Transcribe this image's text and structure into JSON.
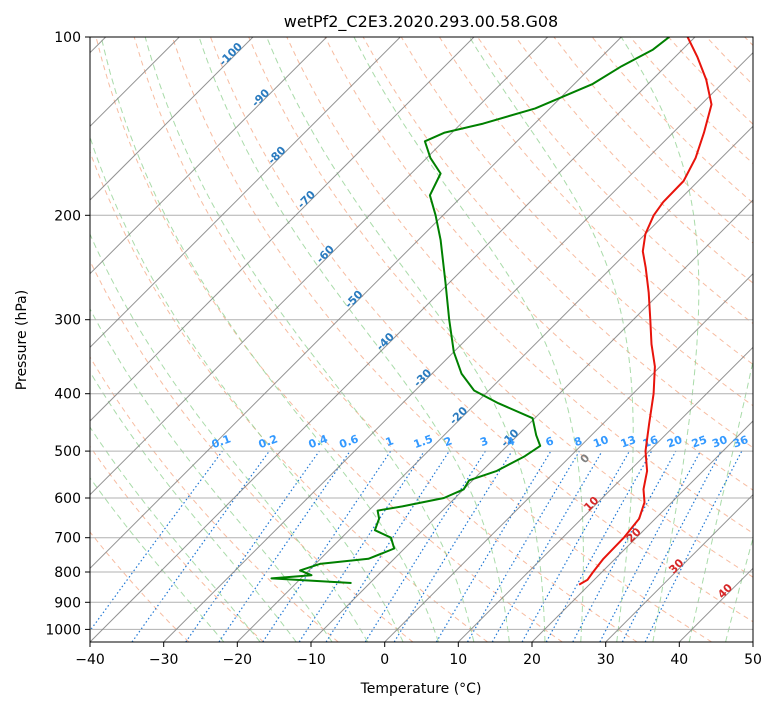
{
  "chart_data": {
    "type": "line",
    "subtype": "skew-T log-p diagram",
    "title": "wetPf2_C2E3.2020.293.00.58.G08",
    "xlabel": "Temperature (°C)",
    "ylabel": "Pressure (hPa)",
    "xlim": [
      -40,
      50
    ],
    "ylim": [
      1050,
      100
    ],
    "y_scale": "log",
    "x_ticks": [
      -40,
      -30,
      -20,
      -10,
      0,
      10,
      20,
      30,
      40,
      50
    ],
    "x_tick_labels": [
      "−40",
      "−30",
      "−20",
      "−10",
      "0",
      "10",
      "20",
      "30",
      "40",
      "50"
    ],
    "y_ticks": [
      100,
      200,
      300,
      400,
      500,
      600,
      700,
      800,
      900,
      1000
    ],
    "y_tick_labels": [
      "100",
      "200",
      "300",
      "400",
      "500",
      "600",
      "700",
      "800",
      "900",
      "1000"
    ],
    "grid": true,
    "series": [
      {
        "color": "#e8140c",
        "points": [
          {
            "p": 840,
            "t": 18.6
          },
          {
            "p": 825,
            "t": 19.1
          },
          {
            "p": 800,
            "t": 18.8
          },
          {
            "p": 760,
            "t": 18.4
          },
          {
            "p": 700,
            "t": 18.3
          },
          {
            "p": 650,
            "t": 17.8
          },
          {
            "p": 610,
            "t": 16.3
          },
          {
            "p": 580,
            "t": 14.4
          },
          {
            "p": 540,
            "t": 12.4
          },
          {
            "p": 500,
            "t": 9.5
          },
          {
            "p": 450,
            "t": 6.3
          },
          {
            "p": 400,
            "t": 2.8
          },
          {
            "p": 360,
            "t": -0.7
          },
          {
            "p": 330,
            "t": -4.2
          },
          {
            "p": 300,
            "t": -7.7
          },
          {
            "p": 270,
            "t": -11.6
          },
          {
            "p": 245,
            "t": -15.4
          },
          {
            "p": 230,
            "t": -18.0
          },
          {
            "p": 215,
            "t": -20.0
          },
          {
            "p": 200,
            "t": -21.4
          },
          {
            "p": 190,
            "t": -21.9
          },
          {
            "p": 175,
            "t": -22.0
          },
          {
            "p": 160,
            "t": -23.5
          },
          {
            "p": 145,
            "t": -25.8
          },
          {
            "p": 130,
            "t": -28.6
          },
          {
            "p": 118,
            "t": -32.7
          },
          {
            "p": 108,
            "t": -37.0
          },
          {
            "p": 100,
            "t": -41.0
          }
        ]
      },
      {
        "color": "#008000",
        "points": [
          {
            "p": 835,
            "t": -12.5
          },
          {
            "p": 820,
            "t": -24.0
          },
          {
            "p": 810,
            "t": -19.0
          },
          {
            "p": 795,
            "t": -21.2
          },
          {
            "p": 775,
            "t": -19.4
          },
          {
            "p": 760,
            "t": -13.5
          },
          {
            "p": 730,
            "t": -11.4
          },
          {
            "p": 700,
            "t": -13.3
          },
          {
            "p": 680,
            "t": -16.5
          },
          {
            "p": 650,
            "t": -17.5
          },
          {
            "p": 630,
            "t": -18.8
          },
          {
            "p": 620,
            "t": -16.0
          },
          {
            "p": 600,
            "t": -11.5
          },
          {
            "p": 580,
            "t": -10.0
          },
          {
            "p": 560,
            "t": -10.5
          },
          {
            "p": 540,
            "t": -8.0
          },
          {
            "p": 510,
            "t": -6.2
          },
          {
            "p": 490,
            "t": -5.5
          },
          {
            "p": 470,
            "t": -7.5
          },
          {
            "p": 440,
            "t": -10.3
          },
          {
            "p": 415,
            "t": -17.0
          },
          {
            "p": 395,
            "t": -22.0
          },
          {
            "p": 370,
            "t": -26.0
          },
          {
            "p": 340,
            "t": -30.0
          },
          {
            "p": 300,
            "t": -35.0
          },
          {
            "p": 260,
            "t": -40.5
          },
          {
            "p": 220,
            "t": -47.0
          },
          {
            "p": 200,
            "t": -51.0
          },
          {
            "p": 185,
            "t": -54.5
          },
          {
            "p": 170,
            "t": -56.0
          },
          {
            "p": 160,
            "t": -59.5
          },
          {
            "p": 150,
            "t": -62.5
          },
          {
            "p": 145,
            "t": -61.0
          },
          {
            "p": 140,
            "t": -57.0
          },
          {
            "p": 132,
            "t": -52.0
          },
          {
            "p": 120,
            "t": -47.5
          },
          {
            "p": 112,
            "t": -46.0
          },
          {
            "p": 105,
            "t": -44.0
          },
          {
            "p": 100,
            "t": -43.5
          }
        ]
      }
    ],
    "isotherm_labels": [
      {
        "t": -100,
        "text": "-100"
      },
      {
        "t": -90,
        "text": "-90"
      },
      {
        "t": -80,
        "text": "-80"
      },
      {
        "t": -70,
        "text": "-70"
      },
      {
        "t": -60,
        "text": "-60"
      },
      {
        "t": -50,
        "text": "-50"
      },
      {
        "t": -40,
        "text": "-40"
      },
      {
        "t": -30,
        "text": "-30"
      },
      {
        "t": -20,
        "text": "-20"
      },
      {
        "t": -10,
        "text": "-10"
      }
    ],
    "isotherm_labels_warm": [
      {
        "t": 0,
        "text": "0"
      },
      {
        "t": 10,
        "text": "10"
      },
      {
        "t": 20,
        "text": "20"
      },
      {
        "t": 30,
        "text": "30"
      },
      {
        "t": 40,
        "text": "40"
      }
    ],
    "mixing_ratio_labels": [
      "0.1",
      "0.2",
      "0.4",
      "0.6",
      "1",
      "1.5",
      "2",
      "3",
      "4",
      "6",
      "8",
      "10",
      "13",
      "16",
      "20",
      "25",
      "30",
      "36"
    ],
    "colors": {
      "temperature": "#e8140c",
      "dewpoint": "#008000",
      "isotherm_grid": "#808080",
      "isobar_grid": "#b0b0b0",
      "dry_adiabat": "#f4a582",
      "moist_adiabat": "#8ccf8c",
      "mixing_ratio": "#1f77d4",
      "cold_label": "#2a7bbf",
      "warm_label": "#d62728",
      "zero_label": "#808080",
      "mixing_label": "#3399ff"
    }
  }
}
